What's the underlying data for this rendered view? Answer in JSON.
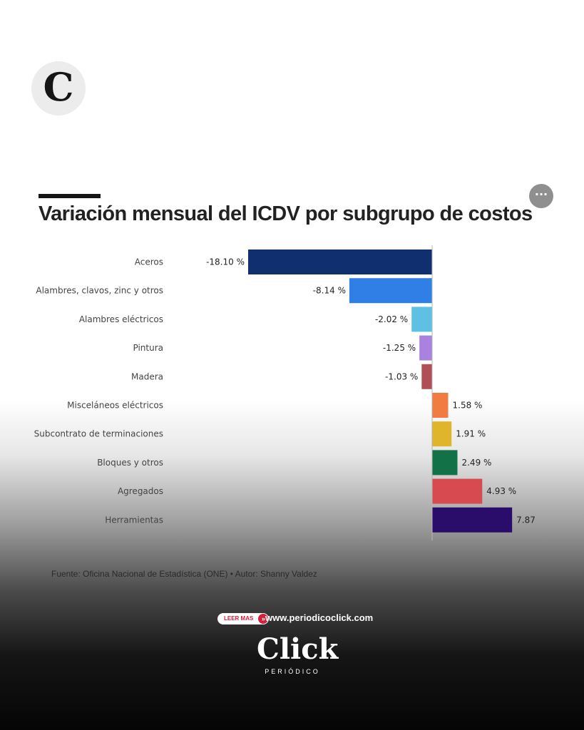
{
  "logo": {
    "letter": "C"
  },
  "header": {
    "more_label": "···"
  },
  "chart_data": {
    "type": "bar",
    "orientation": "horizontal",
    "title": "Variación mensual del ICDV por subgrupo de costos",
    "categories": [
      "Aceros",
      "Alambres, clavos, zinc y otros",
      "Alambres eléctricos",
      "Pintura",
      "Madera",
      "Misceláneos eléctricos",
      "Subcontrato de terminaciones",
      "Bloques y otros",
      "Agregados",
      "Herramientas"
    ],
    "values": [
      -18.1,
      -8.14,
      -2.02,
      -1.25,
      -1.03,
      1.58,
      1.91,
      2.49,
      4.93,
      7.87
    ],
    "value_labels": [
      "-18.10 %",
      "-8.14 %",
      "-2.02 %",
      "-1.25 %",
      "-1.03 %",
      "1.58 %",
      "1.91 %",
      "2.49 %",
      "4.93 %",
      "7.87"
    ],
    "colors": [
      "#0f2f6e",
      "#2f7fe6",
      "#5ec1e4",
      "#a982e0",
      "#b24e55",
      "#f07c42",
      "#e0b52c",
      "#137147",
      "#d64a50",
      "#2a0d6a"
    ],
    "xlim": [
      -18.1,
      7.87
    ],
    "grid": false,
    "legend": "none"
  },
  "source": "Fuente: Oficina Nacional de Estadística (ONE) • Autor: Shanny Valdez",
  "footer": {
    "leer_mas": "LEER MAS",
    "leer_mas_arrow": "»",
    "url": "www.periodicoclick.com",
    "brand": "Click",
    "brand_sub": "PERIÓDICO"
  }
}
